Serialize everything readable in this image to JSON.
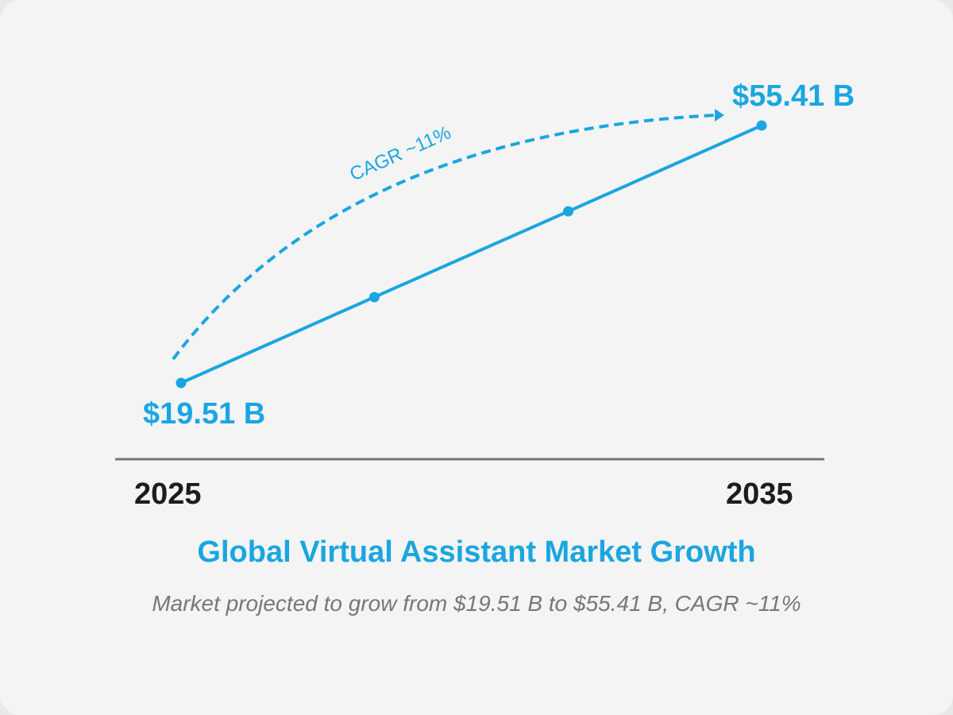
{
  "chart_data": {
    "type": "line",
    "title": "Global Virtual Assistant Market Growth",
    "subtitle": "Market projected to grow from $19.51 B to $55.41 B, CAGR ~11%",
    "x_tick_labels": [
      "2025",
      "2035"
    ],
    "x": [
      2025,
      2028.33,
      2031.67,
      2035
    ],
    "values": [
      19.51,
      31.48,
      43.44,
      55.41
    ],
    "xlim": [
      2025,
      2035
    ],
    "data_labels": {
      "start": "$19.51 B",
      "end": "$55.41 B"
    },
    "annotation": "CAGR ~11%",
    "grid": false,
    "color": "#1aa6e0"
  }
}
